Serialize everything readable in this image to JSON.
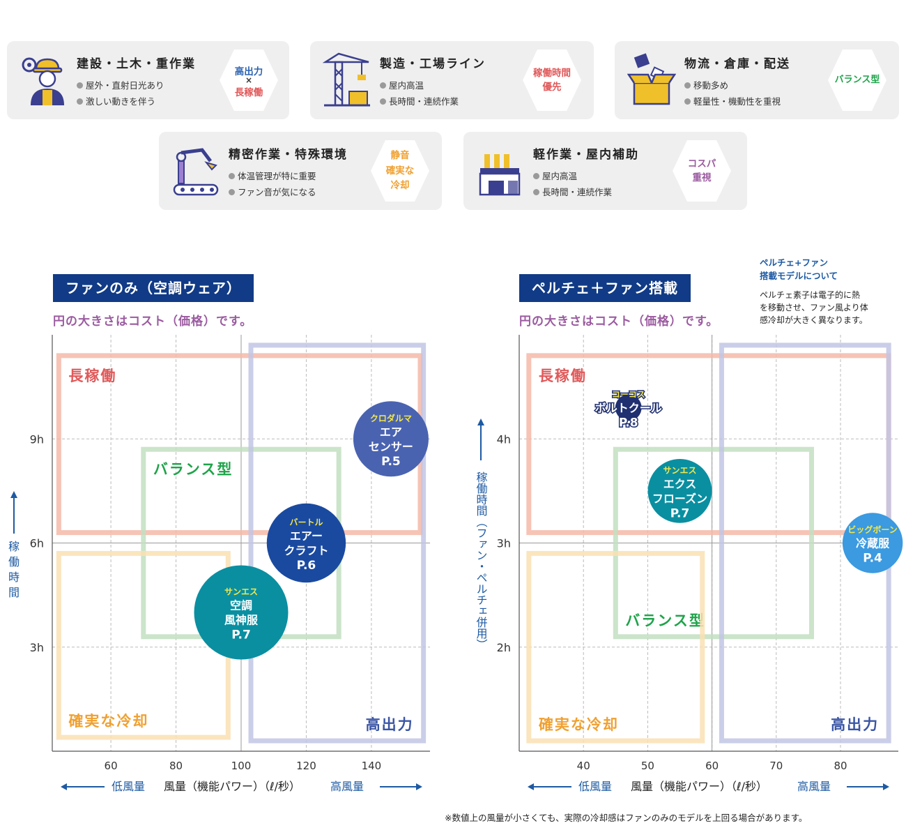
{
  "cards": [
    {
      "title": "建設・土木・重作業",
      "points": [
        "屋外・直射日光あり",
        "激しい動きを伴う"
      ],
      "badge": [
        "高出力",
        "×",
        "長稼働"
      ],
      "badge_colors": [
        "#2b62b0",
        "#333333",
        "#e0595a"
      ],
      "icon": "construction-worker-icon"
    },
    {
      "title": "製造・工場ライン",
      "points": [
        "屋内高温",
        "長時間・連続作業"
      ],
      "badge": [
        "稼働時間",
        "優先"
      ],
      "badge_colors": [
        "#e0595a",
        "#e0595a"
      ],
      "icon": "crane-icon"
    },
    {
      "title": "物流・倉庫・配送",
      "points": [
        "移動多め",
        "軽量性・機動性を重視"
      ],
      "badge": [
        "バランス型"
      ],
      "badge_colors": [
        "#1fa34a"
      ],
      "icon": "cardboard-box-icon"
    },
    {
      "title": "精密作業・特殊環境",
      "points": [
        "体温管理が特に重要",
        "ファン音が気になる"
      ],
      "badge": [
        "静音",
        "確実な",
        "冷却"
      ],
      "badge_colors": [
        "#f0a030",
        "#f0a030",
        "#f0a030"
      ],
      "icon": "robot-arm-icon"
    },
    {
      "title": "軽作業・屋内補助",
      "points": [
        "屋内高温",
        "長時間・連続作業"
      ],
      "badge": [
        "コスパ",
        "重視"
      ],
      "badge_colors": [
        "#9b5ba0",
        "#9b5ba0"
      ],
      "icon": "factory-icon"
    }
  ],
  "left_panel": {
    "band_title": "ファンのみ（空調ウェア）",
    "subtitle": "円の大きさはコスト（価格）です。"
  },
  "right_panel": {
    "band_title": "ペルチェ＋ファン搭載",
    "subtitle": "円の大きさはコスト（価格）です。",
    "note_title": [
      "ペルチェ+ファン",
      "搭載モデルについて"
    ],
    "note_body": [
      "ペルチェ素子は電子的に熱",
      "を移動させ、ファン風より体",
      "感冷却が大きく異なります。"
    ]
  },
  "footnote": "※数値上の風量が小さくても、実際の冷却感はファンのみのモデルを上回る場合があります。",
  "colors": {
    "navy": "#113b86",
    "long": "#e0595a",
    "balance": "#1fa34a",
    "sure": "#f0a030",
    "power": "#3a55a5",
    "axis_blue": "#1d5aa3"
  },
  "chart_data": [
    {
      "type": "scatter",
      "xlabel": "風量（機能パワー）（ℓ/秒）",
      "xlabel_low": "低風量",
      "xlabel_high": "高風量",
      "ylabel": "稼働時間",
      "x_ticks": [
        60,
        80,
        100,
        120,
        140
      ],
      "y_ticks": [
        3,
        6,
        9
      ],
      "y_tick_labels": [
        "3h",
        "6h",
        "9h"
      ],
      "xlim": [
        42,
        158
      ],
      "ylim": [
        0,
        12
      ],
      "regions": [
        {
          "name": "長稼働",
          "color": "#f4b8a8",
          "text_color": "#e0595a",
          "x": [
            44,
            155
          ],
          "y": [
            6.3,
            11.4
          ],
          "label_pos": "top-left"
        },
        {
          "name": "バランス型",
          "color": "#c2dfc1",
          "text_color": "#1fa34a",
          "x": [
            70,
            130
          ],
          "y": [
            3.3,
            8.7
          ],
          "label_pos": "top-left"
        },
        {
          "name": "確実な冷却",
          "color": "#fae0b3",
          "text_color": "#f0a030",
          "x": [
            44,
            96
          ],
          "y": [
            0.4,
            5.7
          ],
          "label_pos": "bottom-left"
        },
        {
          "name": "高出力",
          "color": "#c2c6e4",
          "text_color": "#3a55a5",
          "x": [
            103,
            156
          ],
          "y": [
            0.3,
            11.7
          ],
          "label_pos": "bottom-right"
        }
      ],
      "bubbles": [
        {
          "brand": "クロダルマ",
          "name": [
            "エア",
            "センサー"
          ],
          "page": "P.5",
          "x": 146,
          "y": 9,
          "size": 1.0,
          "color": "#4a63b1"
        },
        {
          "brand": "バートル",
          "name": [
            "エアー",
            "クラフト"
          ],
          "page": "P.6",
          "x": 120,
          "y": 6,
          "size": 1.05,
          "color": "#1a4aa0"
        },
        {
          "brand": "サンエス",
          "name": [
            "空調",
            "風神服"
          ],
          "page": "P.7",
          "x": 100,
          "y": 4,
          "size": 1.25,
          "color": "#0a8fa1"
        }
      ]
    },
    {
      "type": "scatter",
      "xlabel": "風量（機能パワー）（ℓ/秒）",
      "xlabel_low": "低風量",
      "xlabel_high": "高風量",
      "ylabel": "稼働時間（ファン・ペルチェ併用）",
      "x_ticks": [
        40,
        50,
        60,
        70,
        80
      ],
      "y_ticks": [
        2,
        3,
        4
      ],
      "y_tick_labels": [
        "2h",
        "3h",
        "4h"
      ],
      "xlim": [
        30,
        89
      ],
      "ylim": [
        1,
        5
      ],
      "regions": [
        {
          "name": "長稼働",
          "color": "#f4b8a8",
          "text_color": "#e0595a",
          "x": [
            31.5,
            87.5
          ],
          "y": [
            3.1,
            4.8
          ],
          "label_pos": "top-left"
        },
        {
          "name": "バランス型",
          "color": "#c2dfc1",
          "text_color": "#1fa34a",
          "x": [
            45,
            75.5
          ],
          "y": [
            2.1,
            3.9
          ],
          "label_pos": "bottom-left"
        },
        {
          "name": "確実な冷却",
          "color": "#fae0b3",
          "text_color": "#f0a030",
          "x": [
            31.5,
            58.5
          ],
          "y": [
            1.1,
            2.9
          ],
          "label_pos": "bottom-left"
        },
        {
          "name": "高出力",
          "color": "#c2c6e4",
          "text_color": "#3a55a5",
          "x": [
            61.5,
            87.5
          ],
          "y": [
            1.1,
            4.9
          ],
          "label_pos": "bottom-right"
        }
      ],
      "bubbles": [
        {
          "brand": "コーコス",
          "name": [
            "ボルトクール"
          ],
          "page": "P.8",
          "x": 47,
          "y": 4.3,
          "size": 0.35,
          "color": "#1f2f70"
        },
        {
          "brand": "サンエス",
          "name": [
            "エクス",
            "フローズン"
          ],
          "page": "P.7",
          "x": 55,
          "y": 3.5,
          "size": 0.85,
          "color": "#0a8fa1"
        },
        {
          "brand": "ビッグボーン",
          "name": [
            "冷蔵服"
          ],
          "page": "P.4",
          "x": 85,
          "y": 3,
          "size": 0.8,
          "color": "#3b9ae0"
        }
      ]
    }
  ]
}
